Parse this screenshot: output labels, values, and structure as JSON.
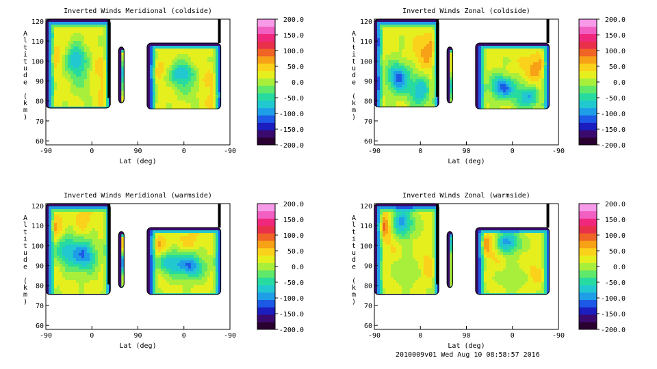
{
  "footer": "2010009v01 Wed Aug 10 08:58:57 2016",
  "chart_data": [
    {
      "type": "heatmap",
      "title": "Inverted Winds Meridional (coldside)",
      "xlabel": "Lat (deg)",
      "ylabel": "Altitude (km)",
      "x_ticks": [
        "-90",
        "0",
        "90",
        "0",
        "-90"
      ],
      "y_ticks": [
        "60",
        "70",
        "80",
        "90",
        "100",
        "110",
        "120"
      ],
      "ylim": [
        58,
        121
      ],
      "colorbar_ticks": [
        "200.0",
        "150.0",
        "100.0",
        "50.0",
        "0.0",
        "-50.0",
        "-100.0",
        "-150.0",
        "-200.0"
      ],
      "crange": [
        -200,
        200
      ],
      "seg_a_bottom": 76.5,
      "seg_c_bottom": 76,
      "seg_c_top": 109,
      "blobs": [
        [
          0.12,
          0.62,
          0.75
        ],
        [
          0.45,
          0.55,
          -0.3
        ],
        [
          0.35,
          0.85,
          0.5
        ],
        [
          0.75,
          0.45,
          0.7
        ],
        [
          0.92,
          0.2,
          0.8
        ],
        [
          0.6,
          0.3,
          0.25
        ]
      ]
    },
    {
      "type": "heatmap",
      "title": "Inverted Winds Zonal (coldside)",
      "xlabel": "Lat (deg)",
      "ylabel": "Altitude (km)",
      "x_ticks": [
        "-90",
        "0",
        "90",
        "0",
        "-90"
      ],
      "y_ticks": [
        "60",
        "70",
        "80",
        "90",
        "100",
        "110",
        "120"
      ],
      "ylim": [
        58,
        121
      ],
      "colorbar_ticks": [
        "200.0",
        "150.0",
        "100.0",
        "50.0",
        "0.0",
        "-50.0",
        "-100.0",
        "-150.0",
        "-200.0"
      ],
      "crange": [
        -200,
        200
      ],
      "seg_a_bottom": 77,
      "seg_c_bottom": 76,
      "seg_c_top": 109,
      "blobs": [
        [
          0.82,
          0.7,
          0.85
        ],
        [
          0.6,
          0.55,
          0.55
        ],
        [
          0.35,
          0.35,
          -0.5
        ],
        [
          0.7,
          0.2,
          -0.3
        ],
        [
          0.75,
          0.55,
          0.6
        ],
        [
          0.9,
          0.25,
          0.7
        ]
      ]
    },
    {
      "type": "heatmap",
      "title": "Inverted Winds Meridional (warmside)",
      "xlabel": "Lat (deg)",
      "ylabel": "Altitude (km)",
      "x_ticks": [
        "-90",
        "0",
        "90",
        "0",
        "-90"
      ],
      "y_ticks": [
        "60",
        "70",
        "80",
        "90",
        "100",
        "110",
        "120"
      ],
      "ylim": [
        58,
        121
      ],
      "colorbar_ticks": [
        "200.0",
        "150.0",
        "100.0",
        "50.0",
        "0.0",
        "-50.0",
        "-100.0",
        "-150.0",
        "-200.0"
      ],
      "crange": [
        -200,
        200
      ],
      "seg_a_bottom": 75.5,
      "seg_c_bottom": 75.5,
      "seg_c_top": 109,
      "blobs": [
        [
          0.1,
          0.75,
          0.8
        ],
        [
          0.55,
          0.85,
          0.7
        ],
        [
          0.5,
          0.4,
          0.3
        ],
        [
          0.3,
          0.5,
          -0.2
        ],
        [
          0.6,
          0.45,
          -0.25
        ]
      ]
    },
    {
      "type": "heatmap",
      "title": "Inverted Winds Zonal (warmside)",
      "xlabel": "Lat (deg)",
      "ylabel": "Altitude (km)",
      "x_ticks": [
        "-90",
        "0",
        "90",
        "0",
        "-90"
      ],
      "y_ticks": [
        "60",
        "70",
        "80",
        "90",
        "100",
        "110",
        "120"
      ],
      "ylim": [
        58,
        121
      ],
      "colorbar_ticks": [
        "200.0",
        "150.0",
        "100.0",
        "50.0",
        "0.0",
        "-50.0",
        "-100.0",
        "-150.0",
        "-200.0"
      ],
      "crange": [
        -200,
        200
      ],
      "seg_a_bottom": 75.5,
      "seg_c_bottom": 75.5,
      "seg_c_top": 109,
      "blobs": [
        [
          0.08,
          0.75,
          0.85
        ],
        [
          0.4,
          0.8,
          -0.45
        ],
        [
          0.35,
          0.55,
          0.6
        ],
        [
          0.5,
          0.3,
          0.25
        ],
        [
          0.2,
          0.8,
          0.75
        ],
        [
          0.8,
          0.35,
          0.7
        ]
      ]
    }
  ]
}
